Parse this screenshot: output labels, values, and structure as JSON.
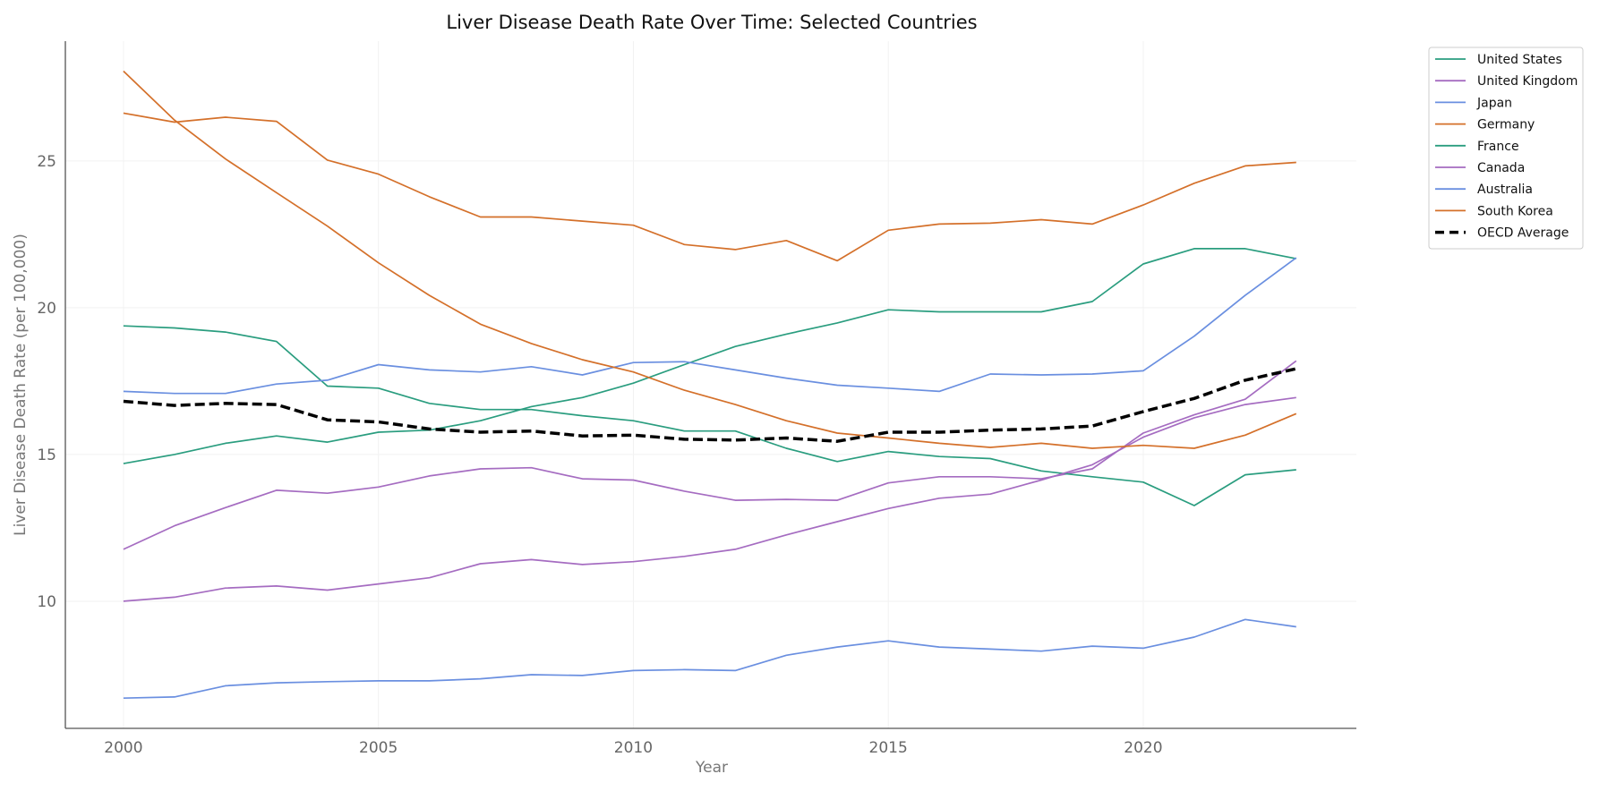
{
  "chart_data": {
    "type": "line",
    "title": "Liver Disease Death Rate Over Time: Selected Countries",
    "xlabel": "Year",
    "ylabel": "Liver Disease Death Rate (per 100,000)",
    "xlim": [
      1998.86,
      2024.18
    ],
    "ylim": [
      5.67,
      29.08
    ],
    "xticks": [
      2000,
      2005,
      2010,
      2015,
      2020
    ],
    "yticks": [
      10,
      15,
      20,
      25
    ],
    "grid": true,
    "legend_position": "outside-top-right",
    "x": [
      2000,
      2001,
      2002,
      2003,
      2004,
      2005,
      2006,
      2007,
      2008,
      2009,
      2010,
      2011,
      2012,
      2013,
      2014,
      2015,
      2016,
      2017,
      2018,
      2019,
      2020,
      2021,
      2022,
      2023
    ],
    "series": [
      {
        "name": "United States",
        "color": "#2a9d7f",
        "style": "solid",
        "values": [
          14.69,
          15.0,
          15.38,
          15.63,
          15.42,
          15.76,
          15.83,
          16.15,
          16.63,
          16.94,
          17.43,
          18.06,
          18.68,
          19.1,
          19.48,
          19.93,
          19.86,
          19.86,
          19.86,
          20.21,
          21.49,
          22.01,
          22.01,
          21.67
        ]
      },
      {
        "name": "United Kingdom",
        "color": "#a56cc1",
        "style": "solid",
        "values": [
          11.77,
          12.57,
          13.19,
          13.78,
          13.68,
          13.89,
          14.27,
          14.51,
          14.55,
          14.17,
          14.13,
          13.75,
          13.44,
          13.47,
          13.44,
          14.03,
          14.24,
          14.24,
          14.17,
          14.51,
          15.73,
          16.35,
          16.88,
          18.19
        ]
      },
      {
        "name": "Japan",
        "color": "#6a8fe0",
        "style": "solid",
        "values": [
          6.7,
          6.74,
          7.12,
          7.22,
          7.26,
          7.29,
          7.29,
          7.36,
          7.5,
          7.47,
          7.64,
          7.67,
          7.64,
          8.16,
          8.44,
          8.65,
          8.44,
          8.37,
          8.3,
          8.47,
          8.4,
          8.78,
          9.38,
          9.13
        ]
      },
      {
        "name": "Germany",
        "color": "#d4702a",
        "style": "solid",
        "values": [
          26.63,
          26.32,
          26.49,
          26.35,
          25.03,
          24.55,
          23.78,
          23.09,
          23.09,
          22.95,
          22.81,
          22.15,
          21.98,
          22.29,
          21.6,
          22.64,
          22.85,
          22.88,
          23.0,
          22.85,
          23.5,
          24.24,
          24.83,
          24.95
        ]
      },
      {
        "name": "France",
        "color": "#2a9d7f",
        "style": "solid",
        "values": [
          19.38,
          19.31,
          19.17,
          18.85,
          17.33,
          17.26,
          16.74,
          16.53,
          16.53,
          16.32,
          16.15,
          15.8,
          15.8,
          15.21,
          14.76,
          15.1,
          14.93,
          14.86,
          14.44,
          14.24,
          14.06,
          13.26,
          14.31,
          14.48
        ]
      },
      {
        "name": "Canada",
        "color": "#a56cc1",
        "style": "solid",
        "values": [
          10.0,
          10.14,
          10.45,
          10.52,
          10.38,
          10.59,
          10.8,
          11.28,
          11.42,
          11.25,
          11.35,
          11.53,
          11.77,
          12.26,
          12.71,
          13.16,
          13.51,
          13.65,
          14.13,
          14.65,
          15.59,
          16.25,
          16.7,
          16.94
        ]
      },
      {
        "name": "Australia",
        "color": "#6a8fe0",
        "style": "solid",
        "values": [
          17.15,
          17.08,
          17.08,
          17.4,
          17.53,
          18.06,
          17.88,
          17.81,
          17.99,
          17.71,
          18.13,
          18.16,
          17.88,
          17.6,
          17.36,
          17.26,
          17.15,
          17.74,
          17.71,
          17.74,
          17.85,
          19.03,
          20.42,
          21.7
        ]
      },
      {
        "name": "South Korea",
        "color": "#d4702a",
        "style": "solid",
        "values": [
          28.06,
          26.39,
          25.07,
          23.92,
          22.78,
          21.53,
          20.42,
          19.44,
          18.78,
          18.23,
          17.81,
          17.19,
          16.7,
          16.15,
          15.73,
          15.56,
          15.38,
          15.24,
          15.38,
          15.21,
          15.31,
          15.21,
          15.66,
          16.39
        ]
      },
      {
        "name": "OECD Average",
        "color": "#000000",
        "style": "dashed",
        "values": [
          16.81,
          16.67,
          16.74,
          16.7,
          16.18,
          16.11,
          15.87,
          15.76,
          15.8,
          15.63,
          15.66,
          15.52,
          15.49,
          15.56,
          15.45,
          15.76,
          15.76,
          15.83,
          15.87,
          15.97,
          16.46,
          16.91,
          17.53,
          17.92
        ]
      }
    ]
  }
}
